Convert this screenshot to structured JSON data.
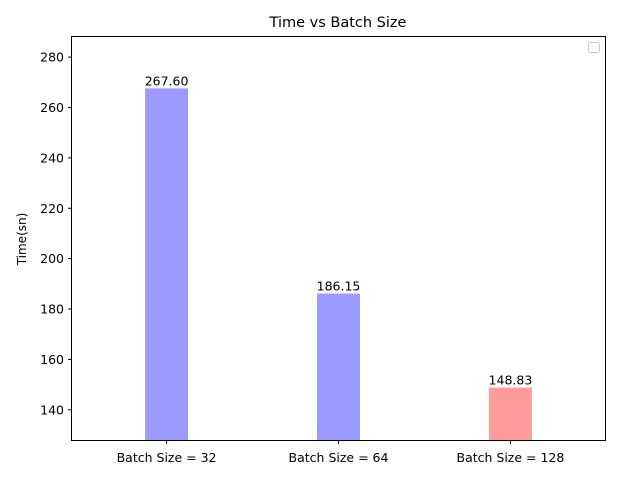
{
  "chart_data": {
    "type": "bar",
    "title": "Time vs Batch Size",
    "xlabel": "",
    "ylabel": "Time(sn)",
    "categories": [
      "Batch Size = 32",
      "Batch Size = 64",
      "Batch Size = 128"
    ],
    "values": [
      267.6,
      186.15,
      148.83
    ],
    "value_labels": [
      "267.60",
      "186.15",
      "148.83"
    ],
    "bar_colors": [
      "#9b9bff",
      "#9b9bff",
      "#ff9b9b"
    ],
    "ylim": [
      128,
      288
    ],
    "yticks": [
      140,
      160,
      180,
      200,
      220,
      240,
      260,
      280
    ],
    "grid": false,
    "legend": {
      "placement": "top-right",
      "entries": []
    }
  }
}
